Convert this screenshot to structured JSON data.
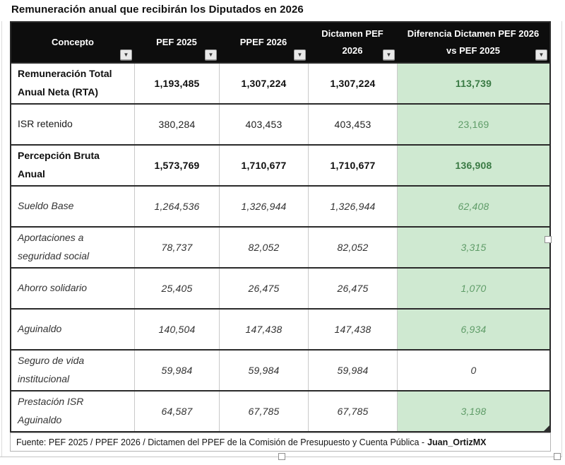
{
  "title": "Remuneración anual que recibirán los Diputados en 2026",
  "columns": [
    "Concepto",
    "PEF 2025",
    "PPEF 2026",
    "Dictamen PEF 2026",
    "Diferencia Dictamen PEF 2026 vs PEF 2025"
  ],
  "rows": [
    {
      "concepto": "Remuneración Total Anual Neta (RTA)",
      "pef_2025": "1,193,485",
      "ppef_2026": "1,307,224",
      "dictamen_pef_2026": "1,307,224",
      "diferencia": "113,739",
      "style": "bold",
      "diferencia_highlighted": true
    },
    {
      "concepto": "ISR retenido",
      "pef_2025": "380,284",
      "ppef_2026": "403,453",
      "dictamen_pef_2026": "403,453",
      "diferencia": "23,169",
      "style": "regular",
      "diferencia_highlighted": true
    },
    {
      "concepto": "Percepción Bruta Anual",
      "pef_2025": "1,573,769",
      "ppef_2026": "1,710,677",
      "dictamen_pef_2026": "1,710,677",
      "diferencia": "136,908",
      "style": "bold",
      "diferencia_highlighted": true
    },
    {
      "concepto": "Sueldo Base",
      "pef_2025": "1,264,536",
      "ppef_2026": "1,326,944",
      "dictamen_pef_2026": "1,326,944",
      "diferencia": "62,408",
      "style": "italic",
      "diferencia_highlighted": true
    },
    {
      "concepto": "Aportaciones a seguridad social",
      "pef_2025": "78,737",
      "ppef_2026": "82,052",
      "dictamen_pef_2026": "82,052",
      "diferencia": "3,315",
      "style": "italic",
      "diferencia_highlighted": true
    },
    {
      "concepto": "Ahorro solidario",
      "pef_2025": "25,405",
      "ppef_2026": "26,475",
      "dictamen_pef_2026": "26,475",
      "diferencia": "1,070",
      "style": "italic",
      "diferencia_highlighted": true
    },
    {
      "concepto": "Aguinaldo",
      "pef_2025": "140,504",
      "ppef_2026": "147,438",
      "dictamen_pef_2026": "147,438",
      "diferencia": "6,934",
      "style": "italic",
      "diferencia_highlighted": true
    },
    {
      "concepto": "Seguro de vida institucional",
      "pef_2025": "59,984",
      "ppef_2026": "59,984",
      "dictamen_pef_2026": "59,984",
      "diferencia": "0",
      "style": "italic",
      "diferencia_highlighted": false
    },
    {
      "concepto": "Prestación ISR Aguinaldo",
      "pef_2025": "64,587",
      "ppef_2026": "67,785",
      "dictamen_pef_2026": "67,785",
      "diferencia": "3,198",
      "style": "italic",
      "diferencia_highlighted": true
    }
  ],
  "footer": {
    "source_prefix": "Fuente: PEF 2025 / PPEF 2026 / Dictamen del PPEF de la Comisión de Presupuesto y Cuenta Pública -",
    "author": "Juan_OrtizMX"
  },
  "icons": {
    "filter_caret": "▼"
  },
  "colors": {
    "header_bg": "#0d0d0d",
    "header_text": "#ffffff",
    "diferencia_bg": "#cfe9d1",
    "diferencia_text_bold": "#3a7a44",
    "diferencia_text": "#5f9c68",
    "border_dark": "#2a2a2a",
    "border_light": "#c9c9c9"
  }
}
